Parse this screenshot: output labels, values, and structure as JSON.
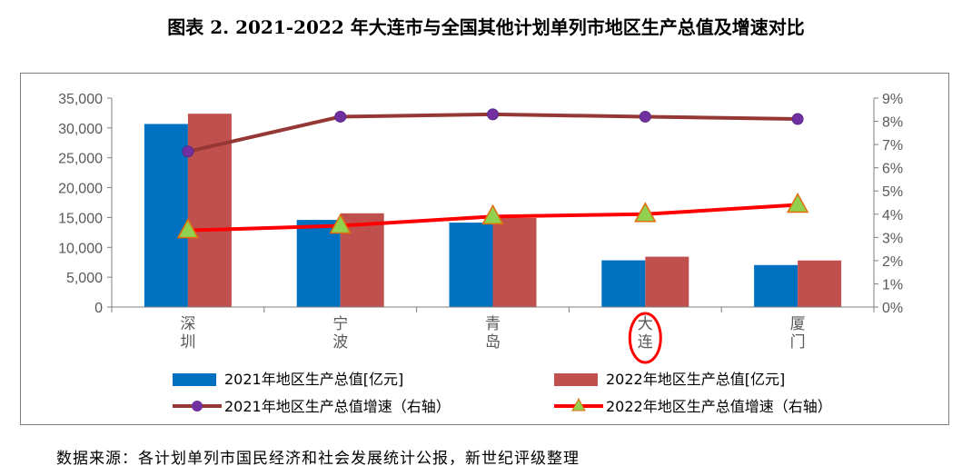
{
  "title": "图表 2.   2021-2022 年大连市与全国其他计划单列市地区生产总值及增速对比",
  "source_note": "数据来源：各计划单列市国民经济和社会发展统计公报，新世纪评级整理",
  "colors": {
    "bar_2021": "#0070c0",
    "bar_2022": "#c0504d",
    "line_2021": "#953735",
    "marker_2021": "#7030a0",
    "line_2022": "#ff0000",
    "marker_2022": "#92d050",
    "highlight_circle": "#ff0000"
  },
  "chart_data": {
    "type": "bar",
    "categories": [
      "深圳",
      "宁波",
      "青岛",
      "大连",
      "厦门"
    ],
    "highlighted_category": "大连",
    "left_axis": {
      "ylim": [
        0,
        35000
      ],
      "ticks": [
        "0",
        "5,000",
        "10,000",
        "15,000",
        "20,000",
        "25,000",
        "30,000",
        "35,000"
      ]
    },
    "right_axis": {
      "ylim": [
        0,
        9
      ],
      "ticks": [
        "0%",
        "1%",
        "2%",
        "3%",
        "4%",
        "5%",
        "6%",
        "7%",
        "8%",
        "9%"
      ]
    },
    "series": [
      {
        "name": "2021年地区生产总值[亿元]",
        "kind": "bar",
        "axis": "left",
        "values": [
          30665,
          14595,
          14136,
          7826,
          7034
        ]
      },
      {
        "name": "2022年地区生产总值[亿元]",
        "kind": "bar",
        "axis": "left",
        "values": [
          32388,
          15704,
          14921,
          8431,
          7803
        ]
      },
      {
        "name": "2021年地区生产总值增速（右轴）",
        "kind": "line",
        "axis": "right",
        "values": [
          6.7,
          8.2,
          8.3,
          8.2,
          8.1
        ]
      },
      {
        "name": "2022年地区生产总值增速（右轴）",
        "kind": "line",
        "axis": "right",
        "values": [
          3.3,
          3.5,
          3.9,
          4.0,
          4.4
        ]
      }
    ],
    "grid": false,
    "legend_position": "bottom"
  }
}
